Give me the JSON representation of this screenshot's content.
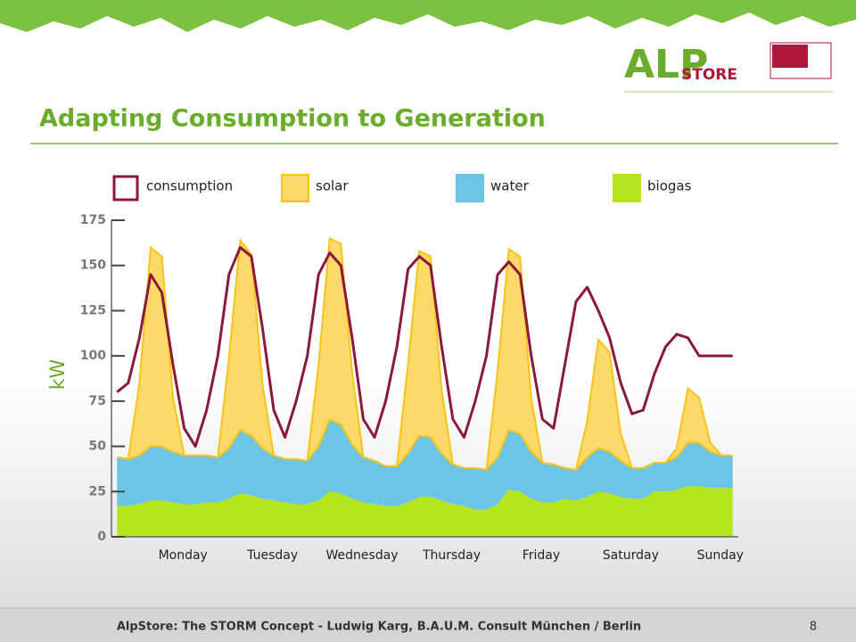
{
  "logo": {
    "main": "ALP",
    "sub": "STORE"
  },
  "footer": {
    "text": "AlpStore: The STORM Concept - Ludwig Karg, B.A.U.M. Consult München / Berlin",
    "page": "8"
  },
  "chart_data": {
    "type": "stacked_area_line",
    "title": "Adapting Consumption to Generation",
    "y_label": "kW",
    "categories": [
      "Monday",
      "Tuesday",
      "Wednesday",
      "Thursday",
      "Friday",
      "Saturday",
      "Sunday"
    ],
    "ylim": [
      0,
      175
    ],
    "yticks": [
      0,
      25,
      50,
      75,
      100,
      125,
      150,
      175
    ],
    "series": [
      {
        "name": "consumption",
        "color": "#8b1a3a",
        "kind": "line",
        "values": [
          [
            80,
            85,
            110,
            145,
            135,
            95,
            60,
            50
          ],
          [
            70,
            100,
            145,
            160,
            155,
            115,
            70,
            55
          ],
          [
            75,
            100,
            145,
            157,
            150,
            110,
            65,
            55
          ],
          [
            75,
            105,
            148,
            155,
            150,
            105,
            65,
            55
          ],
          [
            75,
            100,
            145,
            152,
            145,
            100,
            65,
            60
          ],
          [
            95,
            130,
            138,
            125,
            110,
            85,
            68,
            70
          ],
          [
            90,
            105,
            112,
            110,
            100,
            100,
            100,
            100
          ]
        ]
      },
      {
        "name": "solar",
        "color": "#fdd86a",
        "kind": "area",
        "values": [
          [
            0,
            0,
            40,
            110,
            105,
            30,
            0,
            0
          ],
          [
            0,
            0,
            50,
            105,
            100,
            35,
            0,
            0
          ],
          [
            0,
            0,
            45,
            100,
            100,
            40,
            0,
            0
          ],
          [
            0,
            0,
            50,
            102,
            100,
            35,
            0,
            0
          ],
          [
            0,
            0,
            48,
            100,
            98,
            30,
            0,
            0
          ],
          [
            0,
            0,
            20,
            60,
            55,
            15,
            0,
            0
          ],
          [
            0,
            0,
            5,
            30,
            25,
            5,
            0,
            0
          ]
        ]
      },
      {
        "name": "water",
        "color": "#6cc5e4",
        "kind": "area",
        "values": [
          [
            27,
            26,
            27,
            30,
            30,
            28,
            27,
            27
          ],
          [
            26,
            25,
            28,
            35,
            33,
            28,
            25,
            24
          ],
          [
            25,
            24,
            30,
            40,
            38,
            30,
            25,
            24
          ],
          [
            22,
            22,
            27,
            34,
            33,
            26,
            22,
            21
          ],
          [
            23,
            22,
            26,
            33,
            32,
            26,
            22,
            21
          ],
          [
            17,
            17,
            22,
            24,
            23,
            20,
            17,
            17
          ],
          [
            16,
            16,
            18,
            24,
            24,
            20,
            18,
            18
          ]
        ]
      },
      {
        "name": "biogas",
        "color": "#b5e61d",
        "kind": "area",
        "values": [
          [
            17,
            17,
            18,
            20,
            20,
            19,
            18,
            18
          ],
          [
            19,
            19,
            21,
            24,
            23,
            21,
            20,
            19
          ],
          [
            18,
            18,
            20,
            25,
            24,
            21,
            19,
            18
          ],
          [
            17,
            17,
            19,
            22,
            22,
            20,
            18,
            17
          ],
          [
            15,
            15,
            18,
            26,
            25,
            21,
            19,
            19
          ],
          [
            21,
            20,
            22,
            25,
            24,
            22,
            21,
            21
          ],
          [
            25,
            25,
            26,
            28,
            28,
            27,
            27,
            27
          ]
        ]
      }
    ]
  }
}
